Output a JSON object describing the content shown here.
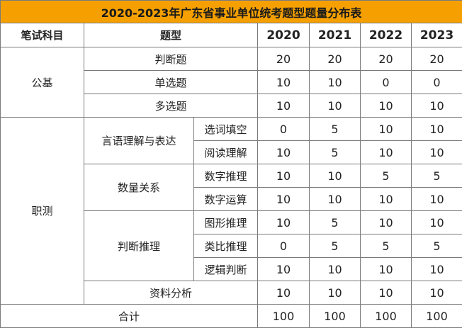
{
  "title": "2020-2023年广东省事业单位统考题型题量分布表",
  "headers": {
    "subject": "笔试科目",
    "type": "题型",
    "years": [
      "2020",
      "2021",
      "2022",
      "2023"
    ]
  },
  "gongji": {
    "label": "公基",
    "rows": [
      {
        "type": "判断题",
        "values": [
          "20",
          "20",
          "20",
          "20"
        ]
      },
      {
        "type": "单选题",
        "values": [
          "10",
          "10",
          "0",
          "0"
        ]
      },
      {
        "type": "多选题",
        "values": [
          "10",
          "10",
          "10",
          "10"
        ]
      }
    ]
  },
  "zhice": {
    "label": "职测",
    "groups": [
      {
        "label": "言语理解与表达",
        "rows": [
          {
            "type": "选词填空",
            "values": [
              "0",
              "5",
              "10",
              "10"
            ]
          },
          {
            "type": "阅读理解",
            "values": [
              "10",
              "5",
              "10",
              "10"
            ]
          }
        ]
      },
      {
        "label": "数量关系",
        "rows": [
          {
            "type": "数字推理",
            "values": [
              "10",
              "10",
              "5",
              "5"
            ]
          },
          {
            "type": "数字运算",
            "values": [
              "10",
              "10",
              "10",
              "10"
            ]
          }
        ]
      },
      {
        "label": "判断推理",
        "rows": [
          {
            "type": "图形推理",
            "values": [
              "10",
              "5",
              "10",
              "10"
            ]
          },
          {
            "type": "类比推理",
            "values": [
              "0",
              "5",
              "5",
              "5"
            ]
          },
          {
            "type": "逻辑判断",
            "values": [
              "10",
              "10",
              "10",
              "10"
            ]
          }
        ]
      }
    ],
    "ziliao": {
      "type": "资料分析",
      "values": [
        "10",
        "10",
        "10",
        "10"
      ]
    }
  },
  "total": {
    "label": "合计",
    "values": [
      "100",
      "100",
      "100",
      "100"
    ]
  },
  "colors": {
    "title_bg": "#f5a000",
    "border": "#7a7a7a"
  }
}
